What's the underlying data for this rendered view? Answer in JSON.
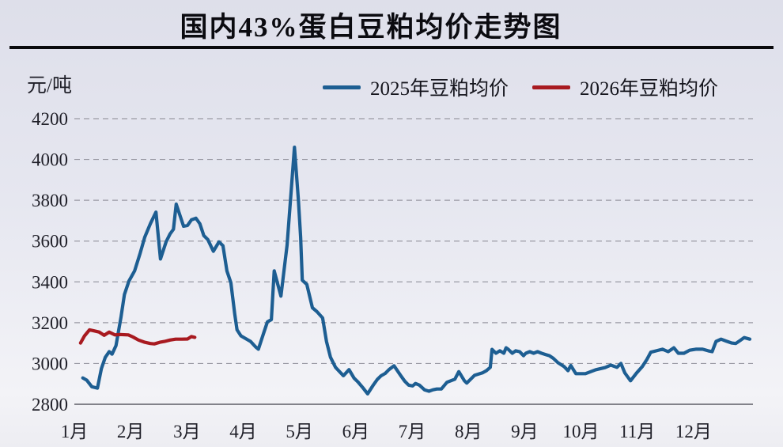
{
  "title": "国内43%蛋白豆粕均价走势图",
  "y_unit_label": "元/吨",
  "legend": [
    {
      "label": "2025年豆粕均价",
      "color": "#1d5e92"
    },
    {
      "label": "2026年豆粕均价",
      "color": "#a81a20"
    }
  ],
  "colors": {
    "background": "#e6e7f0",
    "grid": "#9a9aa4",
    "baseline": "#5c5c66",
    "title_rule": "#0a0a0d",
    "series_2025": "#1d5e92",
    "series_2026": "#a81a20"
  },
  "chart_data": {
    "type": "line",
    "title": "国内43%蛋白豆粕均价走势图",
    "xlabel": "",
    "ylabel": "元/吨",
    "ylim": [
      2800,
      4200
    ],
    "xlim": [
      1,
      13
    ],
    "y_ticks": [
      2800,
      3000,
      3200,
      3400,
      3600,
      3800,
      4000,
      4200
    ],
    "x_tick_labels": [
      "1月",
      "2月",
      "3月",
      "4月",
      "5月",
      "6月",
      "7月",
      "8月",
      "9月",
      "10月",
      "11月",
      "12月"
    ],
    "grid": "horizontal-dashed",
    "legend_position": "top",
    "series": [
      {
        "name": "2025年豆粕均价",
        "color": "#1d5e92",
        "x_unit": "month (1=Jan 1, 13=Dec 31)",
        "points": [
          [
            1.15,
            2929
          ],
          [
            1.22,
            2918
          ],
          [
            1.31,
            2886
          ],
          [
            1.41,
            2879
          ],
          [
            1.48,
            2975
          ],
          [
            1.55,
            3030
          ],
          [
            1.62,
            3058
          ],
          [
            1.67,
            3046
          ],
          [
            1.74,
            3088
          ],
          [
            1.83,
            3230
          ],
          [
            1.89,
            3338
          ],
          [
            1.97,
            3404
          ],
          [
            2.07,
            3454
          ],
          [
            2.17,
            3542
          ],
          [
            2.25,
            3619
          ],
          [
            2.35,
            3685
          ],
          [
            2.45,
            3742
          ],
          [
            2.53,
            3512
          ],
          [
            2.63,
            3596
          ],
          [
            2.7,
            3635
          ],
          [
            2.76,
            3658
          ],
          [
            2.81,
            3781
          ],
          [
            2.88,
            3723
          ],
          [
            2.94,
            3673
          ],
          [
            3.01,
            3677
          ],
          [
            3.08,
            3704
          ],
          [
            3.16,
            3712
          ],
          [
            3.23,
            3685
          ],
          [
            3.3,
            3627
          ],
          [
            3.37,
            3608
          ],
          [
            3.47,
            3550
          ],
          [
            3.57,
            3596
          ],
          [
            3.64,
            3577
          ],
          [
            3.71,
            3454
          ],
          [
            3.78,
            3396
          ],
          [
            3.85,
            3242
          ],
          [
            3.89,
            3165
          ],
          [
            3.96,
            3135
          ],
          [
            4.06,
            3119
          ],
          [
            4.13,
            3108
          ],
          [
            4.22,
            3081
          ],
          [
            4.27,
            3070
          ],
          [
            4.36,
            3146
          ],
          [
            4.43,
            3204
          ],
          [
            4.5,
            3215
          ],
          [
            4.55,
            3454
          ],
          [
            4.67,
            3330
          ],
          [
            4.78,
            3581
          ],
          [
            4.85,
            3838
          ],
          [
            4.91,
            4060
          ],
          [
            4.98,
            3800
          ],
          [
            5.02,
            3620
          ],
          [
            5.05,
            3408
          ],
          [
            5.13,
            3388
          ],
          [
            5.23,
            3273
          ],
          [
            5.31,
            3254
          ],
          [
            5.41,
            3223
          ],
          [
            5.48,
            3108
          ],
          [
            5.55,
            3031
          ],
          [
            5.64,
            2981
          ],
          [
            5.78,
            2940
          ],
          [
            5.88,
            2970
          ],
          [
            5.97,
            2928
          ],
          [
            6.04,
            2909
          ],
          [
            6.12,
            2883
          ],
          [
            6.21,
            2851
          ],
          [
            6.31,
            2894
          ],
          [
            6.38,
            2921
          ],
          [
            6.45,
            2940
          ],
          [
            6.52,
            2951
          ],
          [
            6.59,
            2970
          ],
          [
            6.68,
            2989
          ],
          [
            6.8,
            2940
          ],
          [
            6.87,
            2913
          ],
          [
            6.94,
            2894
          ],
          [
            7.01,
            2890
          ],
          [
            7.06,
            2902
          ],
          [
            7.13,
            2894
          ],
          [
            7.22,
            2871
          ],
          [
            7.3,
            2864
          ],
          [
            7.37,
            2871
          ],
          [
            7.44,
            2875
          ],
          [
            7.52,
            2875
          ],
          [
            7.62,
            2908
          ],
          [
            7.76,
            2923
          ],
          [
            7.83,
            2960
          ],
          [
            7.93,
            2915
          ],
          [
            7.97,
            2904
          ],
          [
            8.11,
            2942
          ],
          [
            8.25,
            2954
          ],
          [
            8.32,
            2965
          ],
          [
            8.39,
            2981
          ],
          [
            8.42,
            3069
          ],
          [
            8.49,
            3050
          ],
          [
            8.56,
            3062
          ],
          [
            8.63,
            3050
          ],
          [
            8.67,
            3077
          ],
          [
            8.71,
            3069
          ],
          [
            8.78,
            3050
          ],
          [
            8.84,
            3062
          ],
          [
            8.91,
            3058
          ],
          [
            8.98,
            3038
          ],
          [
            9.02,
            3050
          ],
          [
            9.09,
            3058
          ],
          [
            9.16,
            3050
          ],
          [
            9.23,
            3058
          ],
          [
            9.3,
            3050
          ],
          [
            9.37,
            3044
          ],
          [
            9.44,
            3038
          ],
          [
            9.51,
            3025
          ],
          [
            9.59,
            3004
          ],
          [
            9.7,
            2985
          ],
          [
            9.77,
            2965
          ],
          [
            9.82,
            2990
          ],
          [
            9.91,
            2950
          ],
          [
            10.08,
            2950
          ],
          [
            10.26,
            2969
          ],
          [
            10.43,
            2980
          ],
          [
            10.53,
            2992
          ],
          [
            10.64,
            2981
          ],
          [
            10.71,
            3000
          ],
          [
            10.78,
            2954
          ],
          [
            10.88,
            2915
          ],
          [
            10.99,
            2954
          ],
          [
            11.09,
            2985
          ],
          [
            11.17,
            3019
          ],
          [
            11.24,
            3055
          ],
          [
            11.34,
            3062
          ],
          [
            11.45,
            3070
          ],
          [
            11.55,
            3058
          ],
          [
            11.65,
            3077
          ],
          [
            11.73,
            3050
          ],
          [
            11.83,
            3050
          ],
          [
            11.93,
            3065
          ],
          [
            12.04,
            3070
          ],
          [
            12.16,
            3070
          ],
          [
            12.26,
            3062
          ],
          [
            12.33,
            3058
          ],
          [
            12.4,
            3108
          ],
          [
            12.49,
            3119
          ],
          [
            12.58,
            3110
          ],
          [
            12.68,
            3100
          ],
          [
            12.75,
            3098
          ],
          [
            12.83,
            3113
          ],
          [
            12.9,
            3127
          ],
          [
            13.0,
            3119
          ]
        ]
      },
      {
        "name": "2026年豆粕均价",
        "color": "#a81a20",
        "x_unit": "month (1=Jan 1, 13=Dec 31)",
        "points": [
          [
            1.11,
            3100
          ],
          [
            1.18,
            3135
          ],
          [
            1.27,
            3165
          ],
          [
            1.35,
            3160
          ],
          [
            1.44,
            3154
          ],
          [
            1.53,
            3138
          ],
          [
            1.62,
            3154
          ],
          [
            1.72,
            3140
          ],
          [
            1.81,
            3142
          ],
          [
            1.96,
            3140
          ],
          [
            2.04,
            3130
          ],
          [
            2.14,
            3115
          ],
          [
            2.24,
            3105
          ],
          [
            2.35,
            3098
          ],
          [
            2.42,
            3096
          ],
          [
            2.52,
            3104
          ],
          [
            2.6,
            3108
          ],
          [
            2.7,
            3115
          ],
          [
            2.8,
            3119
          ],
          [
            2.91,
            3119
          ],
          [
            3.01,
            3120
          ],
          [
            3.08,
            3132
          ],
          [
            3.14,
            3128
          ]
        ]
      }
    ]
  }
}
